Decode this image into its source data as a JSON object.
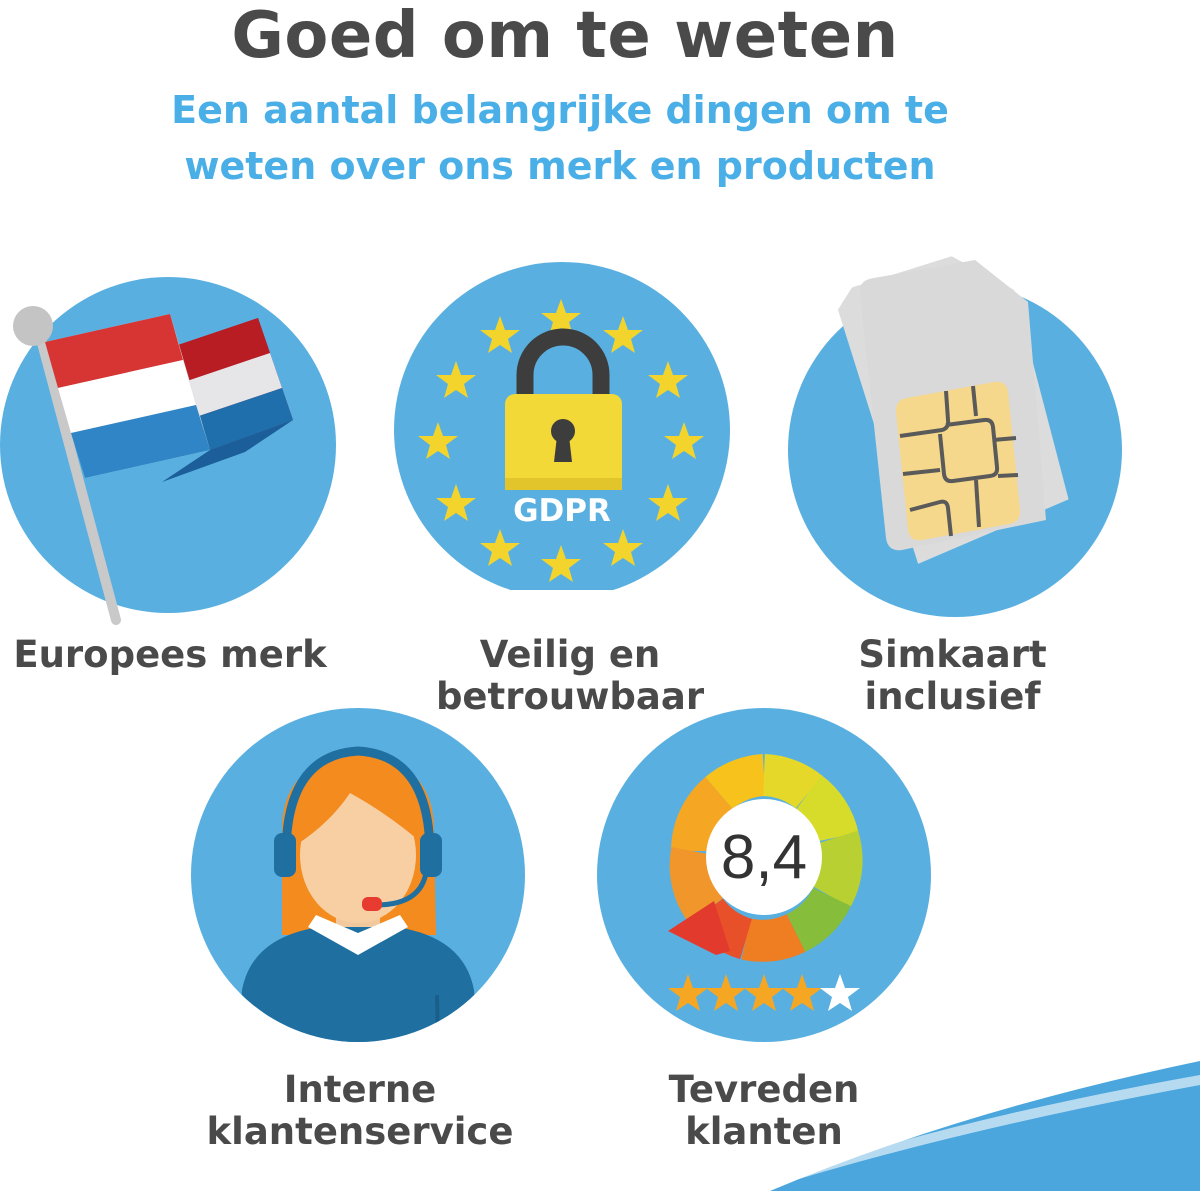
{
  "header": {
    "title": "Goed om te weten",
    "subtitle_line1": "Een aantal belangrijke dingen om te",
    "subtitle_line2": "weten over ons merk en producten"
  },
  "features": [
    {
      "label_line1": "Europees merk",
      "label_line2": "",
      "icon": "flag-icon"
    },
    {
      "label_line1": "Veilig en",
      "label_line2": "betrouwbaar",
      "icon": "lock-icon",
      "badge": "GDPR"
    },
    {
      "label_line1": "Simkaart",
      "label_line2": "inclusief",
      "icon": "sim-card-icon"
    },
    {
      "label_line1": "Interne",
      "label_line2": "klantenservice",
      "icon": "headset-agent-icon"
    },
    {
      "label_line1": "Tevreden",
      "label_line2": "klanten",
      "icon": "rating-gauge-icon",
      "score": "8,4",
      "rating": {
        "value": 4,
        "max": 5
      }
    }
  ],
  "colors": {
    "circle": "#59b0e0",
    "title": "#4a4a4a",
    "subtitle": "#4aafe6",
    "star": "#f2d42c"
  }
}
